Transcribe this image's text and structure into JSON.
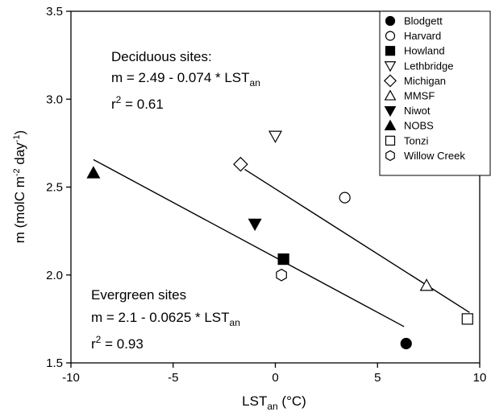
{
  "chart_data": {
    "type": "scatter",
    "xlabel": {
      "base": "LST",
      "sub": "an",
      "tail": " (°C)"
    },
    "ylabel": {
      "pre": "m (molC m",
      "sup1": "-2",
      "mid": " day",
      "sup2": "-1",
      "post": ")"
    },
    "xlim": [
      -10,
      10
    ],
    "ylim": [
      1.5,
      3.5
    ],
    "xticks": [
      -10,
      -5,
      0,
      5,
      10
    ],
    "yticks": [
      1.5,
      2.0,
      2.5,
      3.0,
      3.5
    ],
    "xtick_labels": [
      "-10",
      "-5",
      "0",
      "5",
      "10"
    ],
    "ytick_labels": [
      "1.5",
      "2.0",
      "2.5",
      "3.0",
      "3.5"
    ],
    "legend_position": "top-right",
    "series": [
      {
        "name": "Blodgett",
        "marker": "filled-circle",
        "points": [
          [
            6.4,
            1.61
          ]
        ]
      },
      {
        "name": "Harvard",
        "marker": "open-circle",
        "points": [
          [
            3.4,
            2.44
          ]
        ]
      },
      {
        "name": "Howland",
        "marker": "filled-square",
        "points": [
          [
            0.4,
            2.09
          ]
        ]
      },
      {
        "name": "Lethbridge",
        "marker": "open-triangle-down",
        "points": [
          [
            0.0,
            2.79
          ]
        ]
      },
      {
        "name": "Michigan",
        "marker": "open-diamond",
        "points": [
          [
            -1.7,
            2.63
          ]
        ]
      },
      {
        "name": "MMSF",
        "marker": "open-triangle-up",
        "points": [
          [
            7.4,
            1.94
          ]
        ]
      },
      {
        "name": "Niwot",
        "marker": "filled-triangle-down",
        "points": [
          [
            -1.0,
            2.29
          ]
        ]
      },
      {
        "name": "NOBS",
        "marker": "filled-triangle-up",
        "points": [
          [
            -8.9,
            2.58
          ]
        ]
      },
      {
        "name": "Tonzi",
        "marker": "open-square",
        "points": [
          [
            9.4,
            1.75
          ]
        ]
      },
      {
        "name": "Willow Creek",
        "marker": "open-hexagon",
        "points": [
          [
            0.3,
            2.0
          ]
        ]
      }
    ],
    "fit_lines": [
      {
        "group": "deciduous",
        "x": [
          -1.5,
          9.5
        ],
        "intercept": 2.49,
        "slope": -0.074
      },
      {
        "group": "evergreen",
        "x": [
          -8.9,
          6.3
        ],
        "intercept": 2.1,
        "slope": -0.0625
      }
    ],
    "annotations": {
      "deciduous": {
        "title": "Deciduous sites:",
        "eq_main": "m = 2.49 - 0.074 * LST",
        "eq_sub": "an",
        "r2_prefix": "r",
        "r2_sup": "2",
        "r2_value": " = 0.61"
      },
      "evergreen": {
        "title": "Evergreen sites",
        "eq_main": "m = 2.1 - 0.0625 * LST",
        "eq_sub": "an",
        "r2_prefix": "r",
        "r2_sup": "2",
        "r2_value": " = 0.93"
      }
    }
  }
}
